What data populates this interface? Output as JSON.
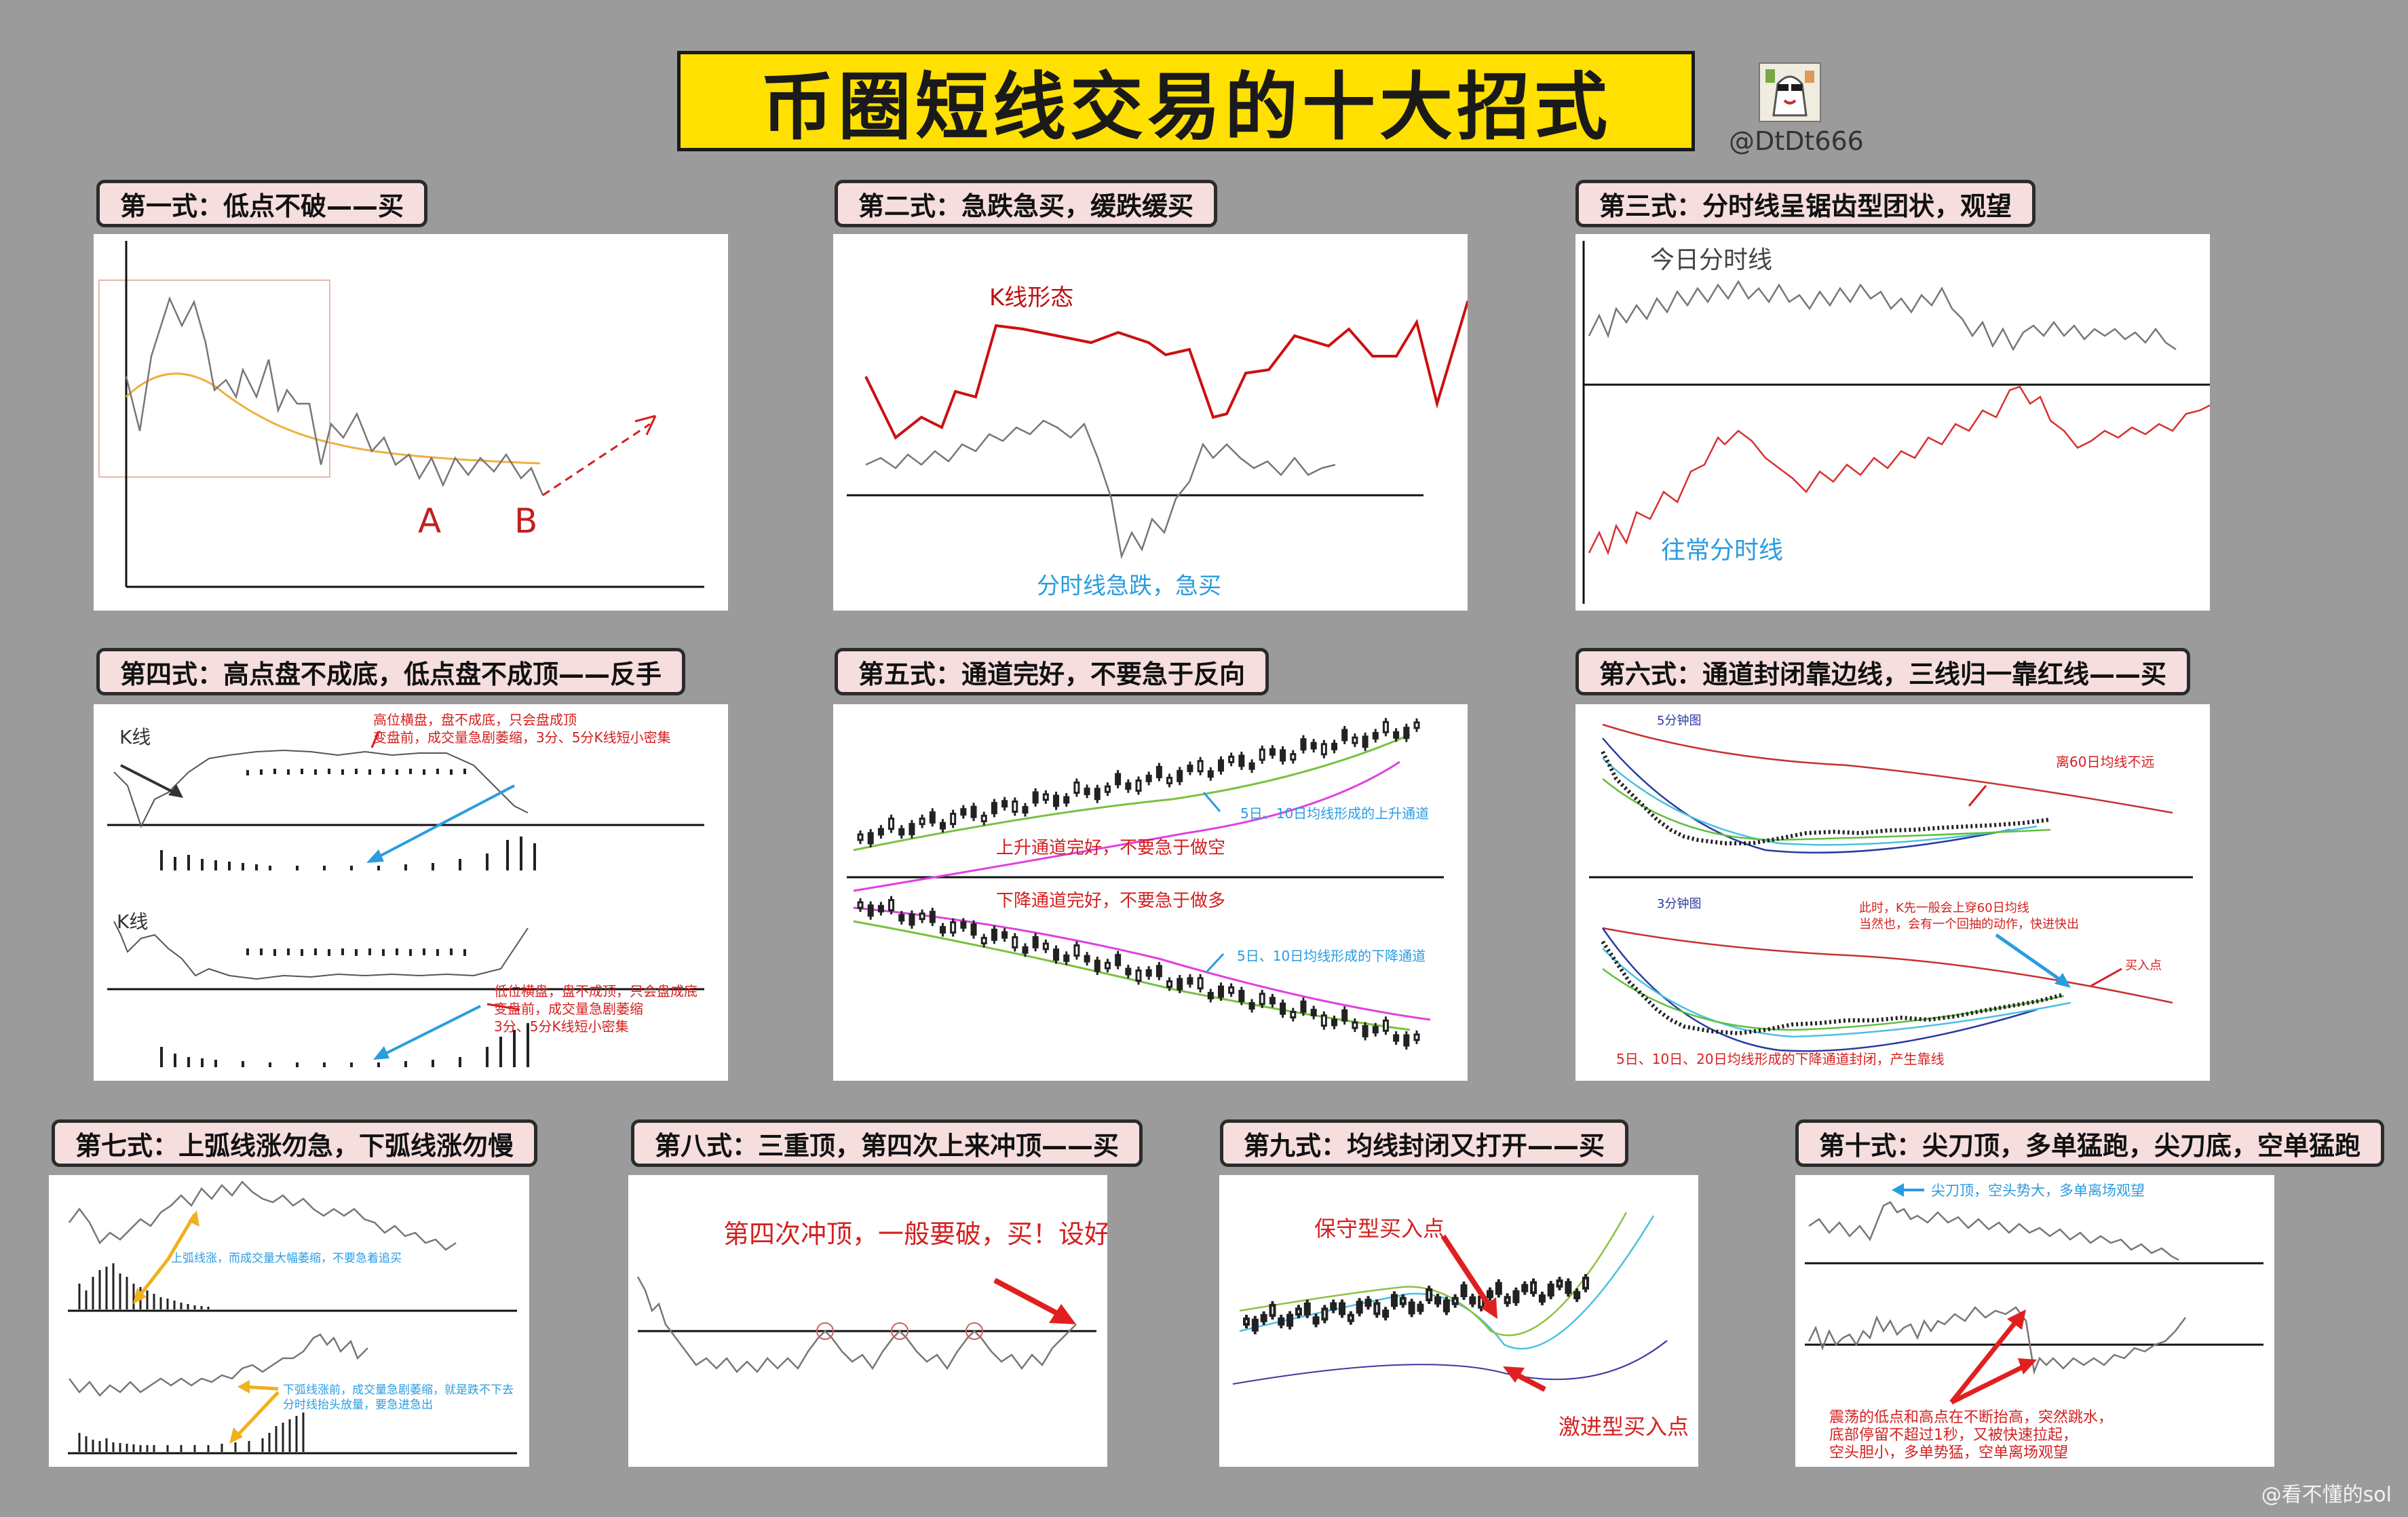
{
  "header": {
    "title": "币圈短线交易的十大招式",
    "handle": "@DtDt666"
  },
  "footer": {
    "watermark": "@看不懂的sol"
  },
  "colors": {
    "red": "#d42020",
    "blue": "#2a9ce0",
    "gray": "#8a8a8a",
    "yellow": "#ffe000"
  },
  "sections": [
    {
      "label": "第一式：低点不破——买",
      "notes": [
        "A",
        "B"
      ]
    },
    {
      "label": "第二式：急跌急买，缓跌缓买",
      "notes": [
        "K线形态",
        "分时线急跌，急买"
      ]
    },
    {
      "label": "第三式：分时线呈锯齿型团状，观望",
      "notes": [
        "今日分时线",
        "往常分时线"
      ]
    },
    {
      "label": "第四式：高点盘不成底，低点盘不成顶——反手",
      "notes": [
        "K线",
        "高位横盘，盘不成底，只会盘成顶",
        "变盘前，成交量急剧萎缩，3分、5分K线短小密集",
        "K线",
        "低位横盘，盘不成顶，只会盘成底",
        "变盘前，成交量急剧萎缩",
        "3分、5分K线短小密集"
      ]
    },
    {
      "label": "第五式：通道完好，不要急于反向",
      "notes": [
        "5日、10日均线形成的上升通道",
        "上升通道完好，不要急于做空",
        "下降通道完好，不要急于做多",
        "5日、10日均线形成的下降通道"
      ]
    },
    {
      "label": "第六式：通道封闭靠边线，三线归一靠红线——买",
      "notes": [
        "5分钟图",
        "离60日均线不远",
        "3分钟图",
        "此时，K先一般会上穿60日均线",
        "当然也，会有一个回抽的动作，快进快出",
        "买入点",
        "5日、10日、20日均线形成的下降通道封闭，产生靠线"
      ]
    },
    {
      "label": "第七式：上弧线涨勿急，下弧线涨勿慢",
      "notes": [
        "上弧线涨，而成交量大幅萎缩，不要急着追买",
        "下弧线涨前，成交量急剧萎缩，就是跌不下去",
        "分时线抬头放量，要急进急出"
      ]
    },
    {
      "label": "第八式：三重顶，第四次上来冲顶——买",
      "notes": [
        "第四次冲顶，一般要破，买！设好止损"
      ]
    },
    {
      "label": "第九式：均线封闭又打开——买",
      "notes": [
        "保守型买入点",
        "激进型买入点"
      ]
    },
    {
      "label": "第十式：尖刀顶，多单猛跑，尖刀底，空单猛跑",
      "notes": [
        "尖刀顶，空头势大，多单离场观望",
        "震荡的低点和高点在不断抬高，突然跳水，",
        "底部停留不超过1秒，又被快速拉起，",
        "空头胆小，多单势猛，空单离场观望"
      ]
    }
  ]
}
